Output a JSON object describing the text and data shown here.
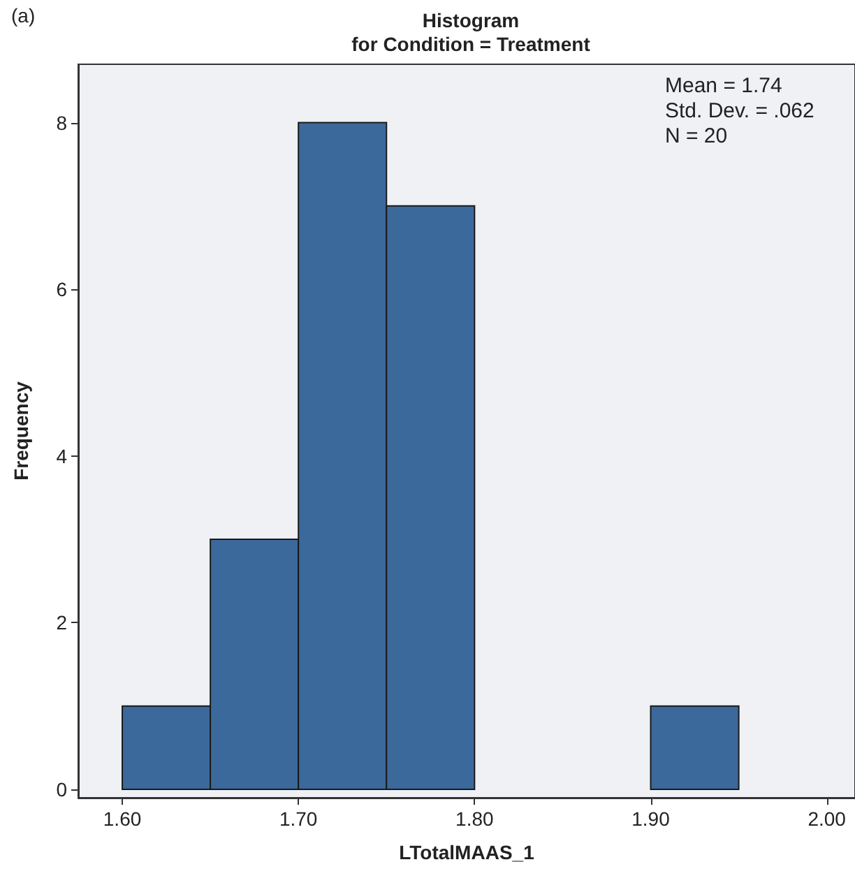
{
  "chart_data": {
    "type": "histogram",
    "title": "Histogram\nfor Condition = Treatment",
    "xlabel": "LTotalMAAS_1",
    "ylabel": "Frequency",
    "bins": [
      1.6,
      1.65,
      1.7,
      1.75,
      1.8,
      1.85,
      1.9,
      1.95
    ],
    "values": [
      1,
      3,
      8,
      7,
      0,
      0,
      1
    ],
    "color": "#3b699c",
    "xlim": [
      1.575,
      2.016
    ],
    "xticks": [
      {
        "value": 1.6,
        "label": "1.60"
      },
      {
        "value": 1.7,
        "label": "1.70"
      },
      {
        "value": 1.8,
        "label": "1.80"
      },
      {
        "value": 1.9,
        "label": "1.90"
      },
      {
        "value": 2.0,
        "label": "2.00"
      }
    ],
    "ylim": [
      -0.1,
      8.7
    ],
    "yticks": [
      0,
      2,
      4,
      6,
      8
    ],
    "grid": false,
    "annotations": [
      "(a)",
      "Mean = 1.74\nStd. Dev. = .062\nN = 20"
    ]
  }
}
